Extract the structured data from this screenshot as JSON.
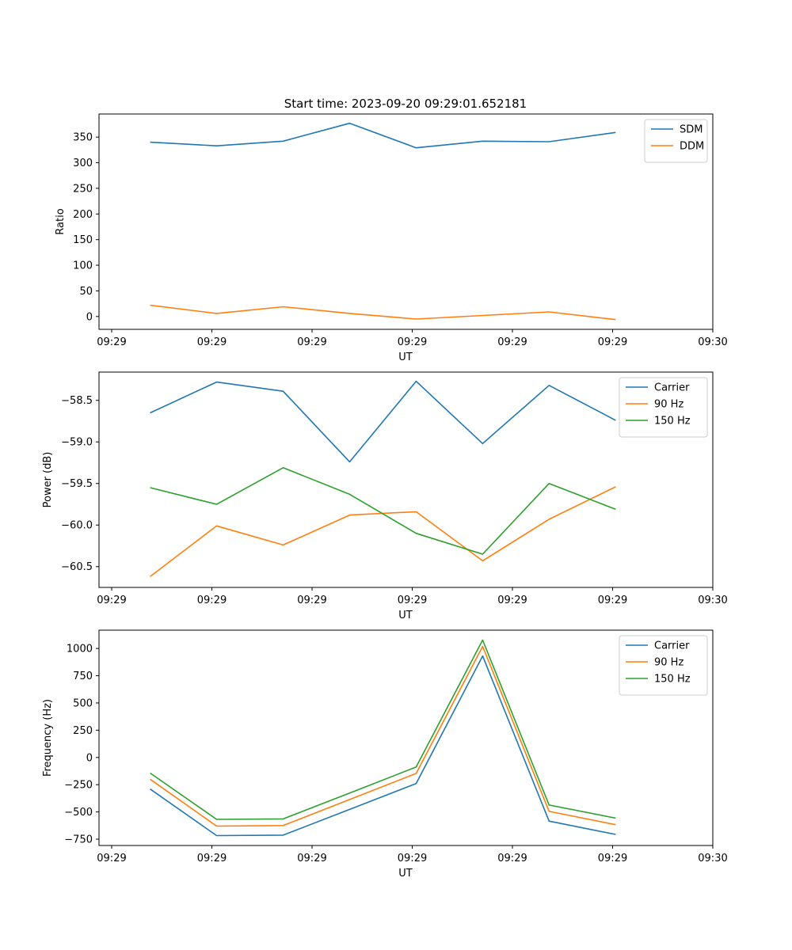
{
  "figure_title": "Start time: 2023-09-20 09:29:01.652181",
  "colors": {
    "blue": "#1f77b4",
    "orange": "#ff7f0e",
    "green": "#2ca02c"
  },
  "chart_data": [
    {
      "type": "line",
      "title": "Start time: 2023-09-20 09:29:01.652181",
      "xlabel": "UT",
      "ylabel": "Ratio",
      "x_ticks": [
        "09:29",
        "09:29",
        "09:29",
        "09:29",
        "09:29",
        "09:29",
        "09:30"
      ],
      "xlim": [
        0,
        6
      ],
      "ylim": [
        -25,
        395
      ],
      "y_ticks": [
        0,
        50,
        100,
        150,
        200,
        250,
        300,
        350
      ],
      "legend": "top-right",
      "x": [
        0.5,
        1.15,
        1.8,
        2.45,
        3.1,
        3.75,
        4.4,
        5.05
      ],
      "series": [
        {
          "name": "SDM",
          "color": "#1f77b4",
          "values": [
            340,
            333,
            342,
            377,
            329,
            342,
            341,
            359
          ]
        },
        {
          "name": "DDM",
          "color": "#ff7f0e",
          "values": [
            22,
            6,
            19,
            6,
            -5,
            2,
            9,
            -6
          ]
        }
      ]
    },
    {
      "type": "line",
      "title": "",
      "xlabel": "UT",
      "ylabel": "Power (dB)",
      "x_ticks": [
        "09:29",
        "09:29",
        "09:29",
        "09:29",
        "09:29",
        "09:29",
        "09:30"
      ],
      "xlim": [
        0,
        6
      ],
      "ylim": [
        -60.75,
        -58.16
      ],
      "y_ticks": [
        -58.5,
        -59.0,
        -59.5,
        -60.0,
        -60.5
      ],
      "y_tick_labels": [
        "−58.5",
        "−59.0",
        "−59.5",
        "−60.0",
        "−60.5"
      ],
      "legend": "top-right",
      "x": [
        0.5,
        1.15,
        1.8,
        2.45,
        3.1,
        3.75,
        4.4,
        5.05
      ],
      "series": [
        {
          "name": "Carrier",
          "color": "#1f77b4",
          "values": [
            -58.65,
            -58.28,
            -58.39,
            -59.24,
            -58.27,
            -59.02,
            -58.32,
            -58.74
          ]
        },
        {
          "name": "90 Hz",
          "color": "#ff7f0e",
          "values": [
            -60.62,
            -60.01,
            -60.24,
            -59.88,
            -59.84,
            -60.43,
            -59.93,
            -59.54
          ]
        },
        {
          "name": "150 Hz",
          "color": "#2ca02c",
          "values": [
            -59.55,
            -59.75,
            -59.31,
            -59.63,
            -60.1,
            -60.35,
            -59.5,
            -59.81
          ]
        }
      ]
    },
    {
      "type": "line",
      "title": "",
      "xlabel": "UT",
      "ylabel": "Frequency (Hz)",
      "x_ticks": [
        "09:29",
        "09:29",
        "09:29",
        "09:29",
        "09:29",
        "09:29",
        "09:30"
      ],
      "xlim": [
        0,
        6
      ],
      "ylim": [
        -808,
        1168
      ],
      "y_ticks": [
        1000,
        750,
        500,
        250,
        0,
        -250,
        -500,
        -750
      ],
      "y_tick_labels": [
        "1000",
        "750",
        "500",
        "250",
        "0",
        "−250",
        "−500",
        "−750"
      ],
      "legend": "top-right",
      "x": [
        0.5,
        1.15,
        1.8,
        2.45,
        3.1,
        3.75,
        4.4,
        5.05
      ],
      "series": [
        {
          "name": "Carrier",
          "color": "#1f77b4",
          "values": [
            -290,
            -717,
            -713,
            -477,
            -239,
            931,
            -584,
            -706
          ]
        },
        {
          "name": "90 Hz",
          "color": "#ff7f0e",
          "values": [
            -200,
            -630,
            -625,
            -386,
            -147,
            1019,
            -495,
            -617
          ]
        },
        {
          "name": "150 Hz",
          "color": "#2ca02c",
          "values": [
            -143,
            -568,
            -564,
            -326,
            -88,
            1077,
            -437,
            -557
          ]
        }
      ]
    }
  ]
}
